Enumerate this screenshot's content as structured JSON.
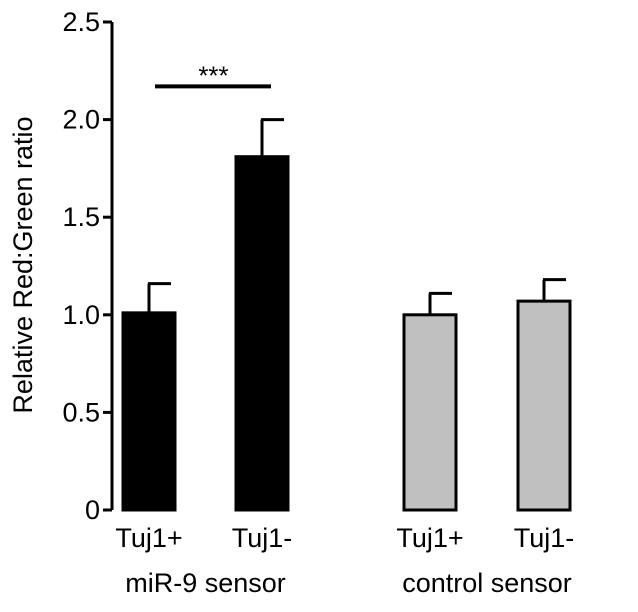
{
  "chart_data": {
    "type": "bar",
    "title": "",
    "xlabel": "",
    "ylabel": "Relative Red:Green ratio",
    "ylim": [
      0,
      2.5
    ],
    "yticks": [
      0,
      0.5,
      1.0,
      1.5,
      2.0,
      2.5
    ],
    "ytick_labels": [
      "0",
      "0.5",
      "1.0",
      "1.5",
      "2.0",
      "2.5"
    ],
    "categories": [
      "Tuj1+",
      "Tuj1-",
      "Tuj1+",
      "Tuj1-"
    ],
    "groups": [
      {
        "label": "miR-9 sensor",
        "indices": [
          0,
          1
        ]
      },
      {
        "label": "control sensor",
        "indices": [
          2,
          3
        ]
      }
    ],
    "values": [
      1.01,
      1.81,
      1.0,
      1.07
    ],
    "errors": [
      0.15,
      0.19,
      0.11,
      0.11
    ],
    "bar_colors": [
      "#000000",
      "#000000",
      "#c0c0c0",
      "#c0c0c0"
    ],
    "significance": {
      "from": 0,
      "to": 1,
      "label": "***",
      "level": 2.17
    },
    "grid": false
  }
}
